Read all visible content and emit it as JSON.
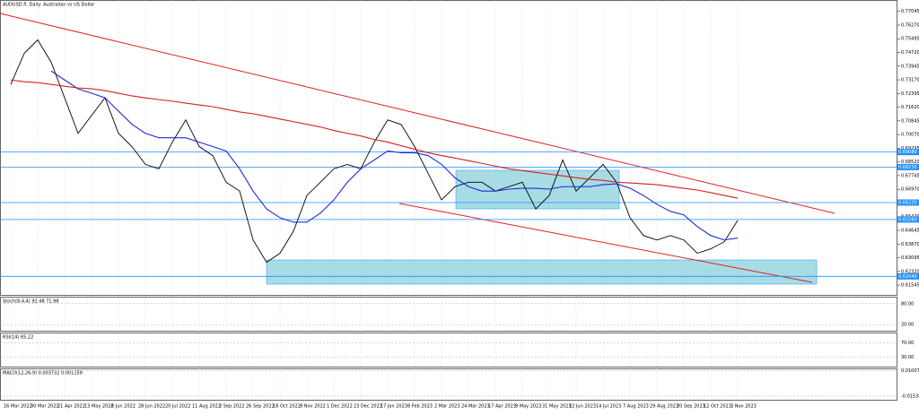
{
  "chart_data": {
    "type": "line",
    "title": "AUDUSD.fi, Daily: Australian vs US Dollar",
    "categories": [
      "16 Mar 2022",
      null,
      "30 Mar 2022",
      null,
      "21 Apr 2022",
      null,
      "13 May 2022",
      null,
      "6 Jun 2022",
      null,
      "28 Jun 2022",
      null,
      "20 Jul 2022",
      null,
      "11 Aug 2022",
      null,
      "2 Sep 2022",
      null,
      "26 Sep 2022",
      null,
      "18 Oct 2022",
      null,
      "9 Nov 2022",
      null,
      "1 Dec 2022",
      null,
      "23 Dec 2022",
      null,
      "17 Jan 2023",
      null,
      "8 Feb 2023",
      null,
      "2 Mar 2023",
      null,
      "24 Mar 2023",
      null,
      "17 Apr 2023",
      null,
      "9 May 2023",
      null,
      "31 May 2023",
      null,
      "22 Jun 2023",
      null,
      "14 Jul 2023",
      null,
      "7 Aug 2023",
      null,
      "29 Aug 2023",
      null,
      "20 Sep 2023",
      null,
      "12 Oct 2023",
      null,
      "3 Nov 2023"
    ],
    "series": [
      {
        "color": "#000000",
        "values": [
          0.7291,
          0.7467,
          0.7543,
          0.7417,
          0.7215,
          0.7014,
          0.7115,
          0.7215,
          0.7014,
          0.6939,
          0.6838,
          0.6813,
          0.6964,
          0.709,
          0.6939,
          0.6888,
          0.6737,
          0.6687,
          0.641,
          0.6284,
          0.6335,
          0.646,
          0.6662,
          0.6737,
          0.6813,
          0.6838,
          0.6813,
          0.6964,
          0.709,
          0.7064,
          0.6939,
          0.6788,
          0.6637,
          0.6712,
          0.6737,
          0.6737,
          0.6687,
          0.6712,
          0.6737,
          0.6586,
          0.6662,
          0.6863,
          0.6687,
          0.6762,
          0.6838,
          0.6737,
          0.6536,
          0.6435,
          0.641,
          0.6435,
          0.641,
          0.6335,
          0.636,
          0.64,
          0.6521
        ]
      },
      {
        "color": "#1f2bd6",
        "values": [
          null,
          null,
          null,
          0.7367,
          0.7316,
          0.7266,
          0.7241,
          0.7215,
          0.714,
          0.7065,
          0.7014,
          0.6989,
          0.6989,
          0.6989,
          0.6964,
          0.6939,
          0.6914,
          0.6813,
          0.6687,
          0.6586,
          0.6536,
          0.6511,
          0.6511,
          0.6562,
          0.6637,
          0.6737,
          0.6813,
          0.6863,
          0.6914,
          0.6904,
          0.6904,
          0.6888,
          0.6838,
          0.6762,
          0.6712,
          0.6687,
          0.6687,
          0.6698,
          0.6703,
          0.6703,
          0.6698,
          0.6712,
          0.6712,
          0.6712,
          0.6723,
          0.6728,
          0.6703,
          0.6662,
          0.6612,
          0.6572,
          0.6552,
          0.6486,
          0.6435,
          0.641,
          0.6421
        ]
      },
      {
        "color": "#d42020",
        "values": [
          0.7316,
          0.7306,
          0.7301,
          0.7291,
          0.7281,
          0.7271,
          0.7266,
          0.7256,
          0.7241,
          0.7226,
          0.7215,
          0.7205,
          0.7196,
          0.7185,
          0.7175,
          0.7165,
          0.715,
          0.7135,
          0.7125,
          0.711,
          0.7095,
          0.708,
          0.7065,
          0.705,
          0.703,
          0.7014,
          0.6999,
          0.6979,
          0.6964,
          0.6944,
          0.6924,
          0.6904,
          0.6888,
          0.6874,
          0.6859,
          0.6844,
          0.6828,
          0.6813,
          0.6803,
          0.6793,
          0.6783,
          0.6773,
          0.6763,
          0.6753,
          0.6748,
          0.6737,
          0.6733,
          0.6728,
          0.6723,
          0.6713,
          0.6703,
          0.6693,
          0.6678,
          0.6662,
          0.6647
        ]
      }
    ],
    "ylim": [
      0.6094,
      0.7769
    ],
    "yticks": [
      {
        "value": 0.77045,
        "label": "0.77045"
      },
      {
        "value": 0.7627,
        "label": "0.76270"
      },
      {
        "value": 0.75495,
        "label": "0.75495"
      },
      {
        "value": 0.7472,
        "label": "0.74720"
      },
      {
        "value": 0.73945,
        "label": "0.73945"
      },
      {
        "value": 0.7317,
        "label": "0.73170"
      },
      {
        "value": 0.72395,
        "label": "0.72395"
      },
      {
        "value": 0.7162,
        "label": "0.71620"
      },
      {
        "value": 0.70845,
        "label": "0.70845"
      },
      {
        "value": 0.7007,
        "label": "0.70070"
      },
      {
        "value": 0.69295,
        "label": "0.69295"
      },
      {
        "value": 0.6852,
        "label": "0.68520"
      },
      {
        "value": 0.67745,
        "label": "0.67745"
      },
      {
        "value": 0.6697,
        "label": "0.66970"
      },
      {
        "value": 0.66195,
        "label": "0.66195"
      },
      {
        "value": 0.6542,
        "label": "0.65420"
      },
      {
        "value": 0.64645,
        "label": "0.64645"
      },
      {
        "value": 0.6387,
        "label": "0.63870"
      },
      {
        "value": 0.63095,
        "label": "0.63095"
      },
      {
        "value": 0.6232,
        "label": "0.62320"
      },
      {
        "value": 0.61545,
        "label": "0.61545"
      }
    ],
    "levels": [
      {
        "value": 0.6908,
        "label": "0.69080"
      },
      {
        "value": 0.6823,
        "label": "0.68230"
      },
      {
        "value": 0.6622,
        "label": "0.66220"
      },
      {
        "value": 0.6526,
        "label": "0.65260"
      },
      {
        "value": 0.6204,
        "label": "0.62040"
      }
    ],
    "level_color": "#1e90ff",
    "indicators": [
      {
        "title": "Stoch(8,4,4) 92.48 71.98",
        "ylim": [
          0,
          100
        ],
        "yticks": [
          {
            "value": 80,
            "label": "80.00"
          },
          {
            "value": 20,
            "label": "20.00"
          }
        ]
      },
      {
        "title": "RSI(14) 65.22",
        "ylim": [
          0,
          100
        ],
        "yticks": [
          {
            "value": 70,
            "label": "70.00"
          },
          {
            "value": 30,
            "label": "30.00"
          }
        ]
      },
      {
        "title": "MACD(12,26,9) 0.003732 0.001159",
        "ylim": [
          -0.02,
          0.0125
        ],
        "yticks": [
          {
            "value": 0.010073,
            "label": "0.010073"
          },
          {
            "value": -0.015385,
            "label": "-0.015385"
          }
        ]
      }
    ]
  }
}
